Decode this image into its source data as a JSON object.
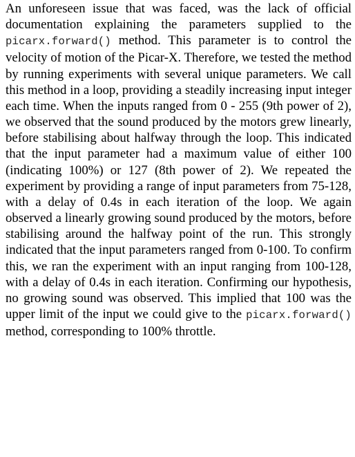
{
  "paragraph": {
    "seg1": "An unforeseen issue that was faced, was the lack of official documentation explaining the parameters supplied to the ",
    "code1": "picarx.forward()",
    "seg2": " method. This parameter is to control the velocity of motion of the Picar-X. Therefore, we tested the method by running experiments with several unique parameters. We call this method in a loop, providing a steadily increasing input integer each time. When the inputs ranged from 0 - 255 (9th power of 2), we observed that the sound produced by the motors grew linearly, before stabilising about halfway through the loop. This indicated that the input parameter had a maximum value of either 100 (indicating 100%) or 127 (8th power of 2). We repeated the experiment by providing a range of input parameters from 75-128, with a delay of 0.4s in each iteration of the loop. We again observed a linearly growing sound produced by the motors, before stabilising around the halfway point of the run. This strongly indicated that the input parameters ranged from 0-100. To confirm this, we ran the experiment with an input ranging from 100-128, with a delay of 0.4s in each iteration. Confirming our hypothesis, no growing sound was observed. This implied that 100 was the upper limit of the input we could give to the ",
    "code2": "picarx.forward()",
    "seg3": " method, corresponding to 100% throttle."
  }
}
